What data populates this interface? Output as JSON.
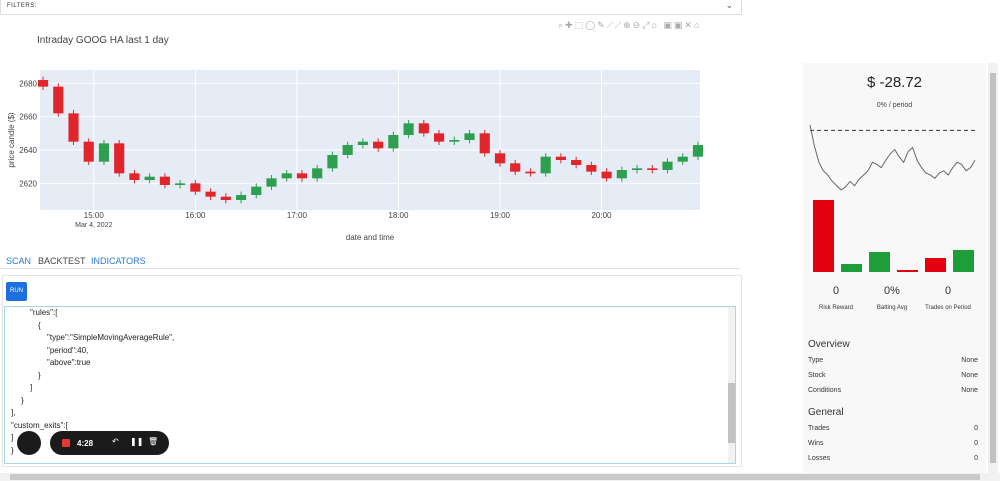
{
  "filters_label": "FILTERS:",
  "chart_data": [
    {
      "type": "candlestick",
      "title": "Intraday GOOG HA last 1 day",
      "x_label": "date and time",
      "y_label": "price candle ($)",
      "date_label": "Mar 4, 2022",
      "x": [
        14.5,
        14.65,
        14.8,
        14.95,
        15.1,
        15.25,
        15.4,
        15.55,
        15.7,
        15.85,
        16.0,
        16.15,
        16.3,
        16.45,
        16.6,
        16.75,
        16.9,
        17.05,
        17.2,
        17.35,
        17.5,
        17.65,
        17.8,
        17.95,
        18.1,
        18.25,
        18.4,
        18.55,
        18.7,
        18.85,
        19.0,
        19.15,
        19.3,
        19.45,
        19.6,
        19.75,
        19.9,
        20.05,
        20.2,
        20.35,
        20.5,
        20.65,
        20.8,
        20.95
      ],
      "open": [
        2682,
        2678,
        2662,
        2645,
        2633,
        2644,
        2626,
        2622,
        2624,
        2619,
        2620,
        2615,
        2612,
        2610,
        2613,
        2618,
        2623,
        2626,
        2623,
        2629,
        2637,
        2643,
        2645,
        2641,
        2649,
        2656,
        2650,
        2645,
        2646,
        2650,
        2638,
        2632,
        2627,
        2626,
        2636,
        2634,
        2631,
        2627,
        2623,
        2628,
        2629,
        2628,
        2633,
        2636
      ],
      "high": [
        2684,
        2680,
        2664,
        2647,
        2646,
        2646,
        2628,
        2626,
        2626,
        2622,
        2622,
        2617,
        2614,
        2615,
        2620,
        2625,
        2628,
        2628,
        2631,
        2639,
        2645,
        2647,
        2647,
        2651,
        2658,
        2658,
        2652,
        2648,
        2652,
        2652,
        2640,
        2634,
        2629,
        2638,
        2638,
        2636,
        2633,
        2629,
        2630,
        2631,
        2631,
        2635,
        2638,
        2645
      ],
      "low": [
        2676,
        2660,
        2643,
        2631,
        2631,
        2624,
        2620,
        2620,
        2617,
        2617,
        2613,
        2610,
        2608,
        2608,
        2611,
        2616,
        2621,
        2621,
        2621,
        2627,
        2635,
        2641,
        2639,
        2639,
        2647,
        2648,
        2643,
        2643,
        2644,
        2636,
        2630,
        2625,
        2624,
        2624,
        2632,
        2629,
        2625,
        2621,
        2621,
        2626,
        2626,
        2626,
        2631,
        2634
      ],
      "close": [
        2678,
        2662,
        2645,
        2633,
        2644,
        2626,
        2622,
        2624,
        2619,
        2620,
        2615,
        2612,
        2610,
        2613,
        2618,
        2623,
        2626,
        2623,
        2629,
        2637,
        2643,
        2645,
        2641,
        2649,
        2656,
        2650,
        2645,
        2646,
        2650,
        2638,
        2632,
        2627,
        2626,
        2636,
        2634,
        2631,
        2627,
        2623,
        2628,
        2629,
        2628,
        2633,
        2636,
        2643
      ],
      "increasing_color": "#2e9e4f",
      "decreasing_color": "#e0262b",
      "xlim": [
        14.47,
        20.97
      ],
      "ylim": [
        2604,
        2688
      ],
      "xticks": [
        {
          "value": 15,
          "label": "15:00"
        },
        {
          "value": 16,
          "label": "16:00"
        },
        {
          "value": 17,
          "label": "17:00"
        },
        {
          "value": 18,
          "label": "18:00"
        },
        {
          "value": 19,
          "label": "19:00"
        },
        {
          "value": 20,
          "label": "20:00"
        }
      ],
      "yticks": [
        2620,
        2640,
        2660,
        2680
      ],
      "grid": true
    },
    {
      "type": "line",
      "title": "$ -28.72",
      "subtitle": "0% / period",
      "color": "#666666",
      "baseline": 70,
      "values": [
        75,
        55,
        40,
        32,
        28,
        22,
        18,
        14,
        17,
        22,
        18,
        24,
        28,
        32,
        40,
        38,
        35,
        42,
        48,
        52,
        45,
        40,
        50,
        54,
        42,
        35,
        30,
        28,
        25,
        30,
        32,
        28,
        35,
        40,
        38,
        32,
        35,
        42
      ]
    },
    {
      "type": "bar",
      "values": [
        72,
        8,
        20,
        2,
        14,
        22
      ],
      "colors": [
        "#e3000f",
        "#1e9e3a",
        "#1e9e3a",
        "#e3000f",
        "#e3000f",
        "#1e9e3a"
      ]
    }
  ],
  "tabs": [
    "SCAN",
    "BACKTEST",
    "INDICATORS"
  ],
  "run_button": "RUN",
  "code_lines": [
    "\"rules\":[",
    "{",
    "\"type\":\"SimpleMovingAverageRule\",",
    "\"period\":40,",
    "\"above\":true",
    "}",
    "]",
    "}",
    "],",
    "\"custom_exits\":[",
    "]",
    "}"
  ],
  "metrics": [
    {
      "value": "0",
      "label": "Risk Reward"
    },
    {
      "value": "0%",
      "label": "Batting Avg"
    },
    {
      "value": "0",
      "label": "Trades on Period"
    }
  ],
  "overview": {
    "title": "Overview",
    "rows": [
      [
        "Type",
        "None"
      ],
      [
        "Stock",
        "None"
      ],
      [
        "Conditions",
        "None"
      ]
    ]
  },
  "general": {
    "title": "General",
    "rows": [
      [
        "Trades",
        "0"
      ],
      [
        "Wins",
        "0"
      ],
      [
        "Losses",
        "0"
      ]
    ]
  },
  "recorder": {
    "time": "4:28"
  }
}
